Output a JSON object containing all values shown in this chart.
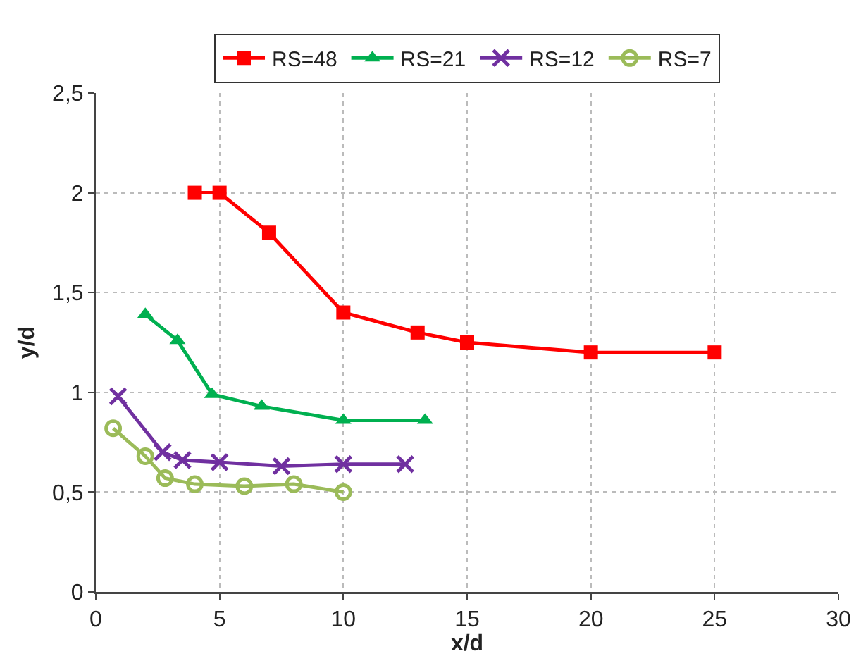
{
  "chart_data": {
    "type": "line",
    "xlabel": "x/d",
    "ylabel": "y/d",
    "xlim": [
      0,
      30
    ],
    "xticks": [
      0,
      5,
      10,
      15,
      20,
      25,
      30
    ],
    "ylim": [
      0,
      2.5
    ],
    "yticks": [
      0,
      {
        "value": 0.5,
        "label": "0,5"
      },
      1,
      {
        "value": 1.5,
        "label": "1,5"
      },
      2,
      {
        "value": 2.5,
        "label": "2,5"
      }
    ],
    "grid": true,
    "legend": "top",
    "line_style": "solid",
    "series": [
      {
        "name": "RS=48",
        "color": "#ff0000",
        "marker": "square",
        "x": [
          4,
          5,
          7,
          10,
          13,
          15,
          20,
          25
        ],
        "values": [
          2,
          2,
          1.8,
          1.4,
          1.3,
          1.25,
          1.2,
          1.2
        ]
      },
      {
        "name": "RS=21",
        "color": "#00b050",
        "marker": "triangle",
        "x": [
          2,
          3.3,
          4.7,
          6.7,
          10,
          13.3
        ],
        "values": [
          1.39,
          1.26,
          0.99,
          0.93,
          0.86,
          0.86
        ]
      },
      {
        "name": "RS=12",
        "color": "#7030a0",
        "marker": "cross",
        "x": [
          0.9,
          2.7,
          3.5,
          5,
          7.5,
          10,
          12.5
        ],
        "values": [
          0.98,
          0.7,
          0.66,
          0.65,
          0.63,
          0.64,
          0.64
        ]
      },
      {
        "name": "RS=7",
        "color": "#9bbb59",
        "marker": "circle-open",
        "x": [
          0.7,
          2,
          2.8,
          4,
          6,
          8,
          10
        ],
        "values": [
          0.82,
          0.68,
          0.57,
          0.54,
          0.53,
          0.54,
          0.5
        ]
      }
    ]
  }
}
